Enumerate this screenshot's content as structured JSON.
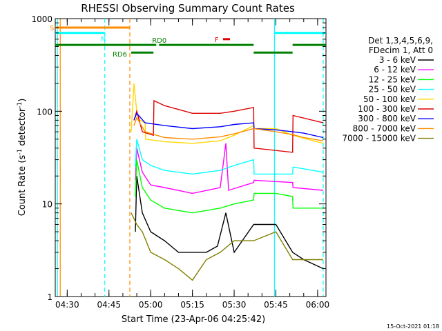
{
  "chart_data": {
    "type": "line",
    "title": "RHESSI Observing Summary Count Rates",
    "xlabel": "Start Time (23-Apr-06 04:25:42)",
    "ylabel_pre": "Count Rate (s",
    "ylabel_sup": "-1",
    "ylabel_post": " detector",
    "ylabel_sup2": "-1",
    "ylabel_end": ")",
    "footer_date": "15-Oct-2021 01:18",
    "xscale": "time",
    "yscale": "log",
    "xlim": [
      "04:25:42",
      "06:03:00"
    ],
    "ylim": [
      1,
      1000
    ],
    "x_ticks": [
      "04:30",
      "04:45",
      "05:00",
      "05:15",
      "05:30",
      "05:45",
      "06:00"
    ],
    "y_ticks": [
      "1",
      "10",
      "100",
      "1000"
    ],
    "legend": {
      "header_1": "Det 1,3,4,5,6,9,",
      "header_2": "FDecim 1, Att 0",
      "placement": "right"
    },
    "series": [
      {
        "name": "3 - 6 keV",
        "color": "#000000",
        "x": [
          "04:54:30",
          "04:55:00",
          "04:57:00",
          "05:00:00",
          "05:05:00",
          "05:10:00",
          "05:20:00",
          "05:24:00",
          "05:27:00",
          "05:30:00",
          "05:37:00",
          "05:45:00",
          "05:51:00",
          "05:55:00",
          "06:02:00"
        ],
        "y": [
          5,
          20,
          8,
          5,
          4,
          3,
          3,
          3.5,
          8,
          3,
          6,
          6,
          3,
          2.5,
          2
        ]
      },
      {
        "name": "6 - 12 keV",
        "color": "#ff00ff",
        "x": [
          "04:54:30",
          "04:55:00",
          "04:57:00",
          "05:00:00",
          "05:05:00",
          "05:15:00",
          "05:25:00",
          "05:27:00",
          "05:28:00",
          "05:37:00",
          "05:37:10",
          "05:51:00",
          "05:51:10",
          "06:02:00"
        ],
        "y": [
          18,
          40,
          22,
          16,
          15,
          13,
          15,
          45,
          14,
          17,
          18,
          17,
          15,
          14
        ]
      },
      {
        "name": "12 - 25 keV",
        "color": "#00ff00",
        "x": [
          "04:54:30",
          "04:55:00",
          "04:57:00",
          "05:00:00",
          "05:05:00",
          "05:15:00",
          "05:25:00",
          "05:30:00",
          "05:37:00",
          "05:37:10",
          "05:45:00",
          "05:51:00",
          "05:51:10",
          "06:02:00"
        ],
        "y": [
          12,
          30,
          15,
          11,
          9,
          8,
          9,
          10,
          11,
          13,
          13,
          12,
          9,
          9
        ]
      },
      {
        "name": "25 - 50 keV",
        "color": "#00ffff",
        "x": [
          "04:54:30",
          "04:55:00",
          "04:57:00",
          "05:00:00",
          "05:05:00",
          "05:15:00",
          "05:25:00",
          "05:30:00",
          "05:37:00",
          "05:37:10",
          "05:51:00",
          "05:51:10",
          "06:02:00"
        ],
        "y": [
          25,
          50,
          30,
          26,
          23,
          21,
          23,
          26,
          30,
          21,
          21,
          25,
          22
        ]
      },
      {
        "name": "50 - 100 keV",
        "color": "#ffd700",
        "x": [
          "04:53:00",
          "04:54:00",
          "04:55:00",
          "04:56:00",
          "04:58:00",
          "04:58:10",
          "05:05:00",
          "05:15:00",
          "05:25:00",
          "05:30:00",
          "05:37:00",
          "05:37:10",
          "05:45:00",
          "05:51:00",
          "05:51:10",
          "06:02:00"
        ],
        "y": [
          60,
          200,
          100,
          80,
          75,
          50,
          47,
          45,
          48,
          55,
          70,
          65,
          65,
          55,
          55,
          45
        ]
      },
      {
        "name": "100 - 300 keV",
        "color": "#dd0000",
        "x": [
          "04:54:00",
          "04:55:00",
          "04:57:00",
          "05:01:00",
          "05:01:10",
          "05:05:00",
          "05:15:00",
          "05:25:00",
          "05:30:00",
          "05:37:00",
          "05:37:10",
          "05:51:00",
          "05:51:10",
          "06:02:00"
        ],
        "y": [
          80,
          100,
          60,
          55,
          130,
          115,
          95,
          95,
          100,
          110,
          40,
          36,
          90,
          75
        ]
      },
      {
        "name": "300 - 800 keV",
        "color": "#0000ff",
        "x": [
          "04:54:00",
          "04:55:00",
          "04:58:00",
          "05:05:00",
          "05:15:00",
          "05:25:00",
          "05:30:00",
          "05:37:00",
          "05:37:10",
          "05:45:00",
          "05:51:00",
          "05:55:00",
          "06:02:00"
        ],
        "y": [
          80,
          95,
          75,
          70,
          65,
          68,
          72,
          75,
          65,
          63,
          60,
          58,
          52
        ]
      },
      {
        "name": "800 - 7000 keV",
        "color": "#ff8c00",
        "x": [
          "04:54:00",
          "04:55:00",
          "04:58:00",
          "05:05:00",
          "05:15:00",
          "05:25:00",
          "05:30:00",
          "05:37:00",
          "05:45:00",
          "05:51:00",
          "05:55:00",
          "06:02:00"
        ],
        "y": [
          70,
          85,
          60,
          52,
          50,
          53,
          57,
          65,
          60,
          56,
          52,
          48
        ]
      },
      {
        "name": "7000 - 15000 keV",
        "color": "#808000",
        "x": [
          "04:53:00",
          "04:55:00",
          "04:57:00",
          "05:00:00",
          "05:05:00",
          "05:10:00",
          "05:15:00",
          "05:20:00",
          "05:25:00",
          "05:30:00",
          "05:37:00",
          "05:45:00",
          "05:51:00",
          "05:55:00",
          "06:02:00"
        ],
        "y": [
          8,
          6,
          5,
          3,
          2.5,
          2,
          1.5,
          2.5,
          3,
          4,
          4,
          5,
          2.5,
          2.5,
          2.5
        ]
      }
    ],
    "status_bars": [
      {
        "label": "S",
        "color": "#ff8c00",
        "y": 800,
        "segments": [
          [
            "04:25:42",
            "04:52:30"
          ]
        ]
      },
      {
        "label": "N",
        "color": "#00ffff",
        "y": 700,
        "segments": [
          [
            "04:25:42",
            "04:43:30"
          ],
          [
            "05:44:30",
            "06:03:00"
          ]
        ]
      },
      {
        "label": "F",
        "color": "#dd0000",
        "y": 600,
        "segments": [
          [
            "05:26:00",
            "05:28:30"
          ]
        ]
      },
      {
        "label": "RD0",
        "color": "#008000",
        "y": 520,
        "segments": [
          [
            "04:25:42",
            "05:02:00"
          ],
          [
            "05:03:00",
            "05:37:00"
          ],
          [
            "05:51:00",
            "06:03:00"
          ]
        ]
      },
      {
        "label": "RD6",
        "color": "#008000",
        "y": 430,
        "segments": [
          [
            "04:53:00",
            "05:01:00"
          ],
          [
            "05:37:00",
            "05:51:00"
          ]
        ]
      }
    ],
    "vlines": [
      {
        "t": "04:26:30",
        "color": "#00ffff",
        "style": "solid"
      },
      {
        "t": "04:27:30",
        "color": "#ff8c00",
        "style": "solid"
      },
      {
        "t": "04:43:30",
        "color": "#00ffff",
        "style": "dashed"
      },
      {
        "t": "04:52:30",
        "color": "#ff8c00",
        "style": "dashed"
      },
      {
        "t": "05:44:30",
        "color": "#00ffff",
        "style": "solid"
      },
      {
        "t": "06:02:00",
        "color": "#00ffff",
        "style": "dashed"
      }
    ],
    "grid": false
  }
}
